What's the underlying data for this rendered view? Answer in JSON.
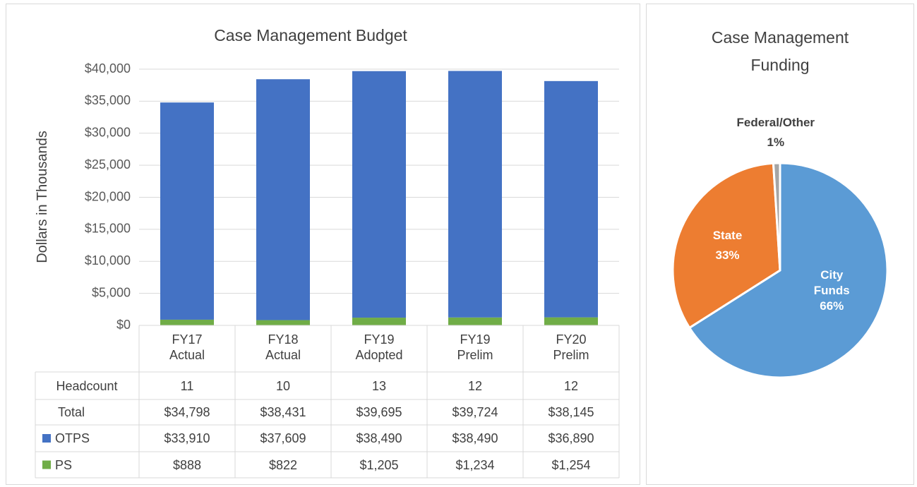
{
  "chart_data": [
    {
      "type": "bar",
      "stacked": true,
      "title": "Case Management Budget",
      "y_label": "Dollars in Thousands",
      "categories": [
        "FY17 Actual",
        "FY18 Actual",
        "FY19 Adopted",
        "FY19 Prelim",
        "FY20 Prelim"
      ],
      "series": [
        {
          "name": "OTPS",
          "color": "#4472c4",
          "values": [
            33910,
            37609,
            38490,
            38490,
            36890
          ],
          "value_labels": [
            "$33,910",
            "$37,609",
            "$38,490",
            "$38,490",
            "$36,890"
          ]
        },
        {
          "name": "PS",
          "color": "#70ad47",
          "values": [
            888,
            822,
            1205,
            1234,
            1254
          ],
          "value_labels": [
            "$888",
            "$822",
            "$1,205",
            "$1,234",
            "$1,254"
          ]
        }
      ],
      "table": {
        "rows": [
          {
            "name": "Headcount",
            "cells": [
              11,
              10,
              13,
              12,
              12
            ]
          },
          {
            "name": "Total",
            "cells": [
              "$34,798",
              "$38,431",
              "$39,695",
              "$39,724",
              "$38,145"
            ]
          }
        ]
      },
      "ylim": [
        0,
        40000
      ],
      "yticks": [
        {
          "value": 0,
          "label": "$0"
        },
        {
          "value": 5000,
          "label": "$5,000"
        },
        {
          "value": 10000,
          "label": "$10,000"
        },
        {
          "value": 15000,
          "label": "$15,000"
        },
        {
          "value": 20000,
          "label": "$20,000"
        },
        {
          "value": 25000,
          "label": "$25,000"
        },
        {
          "value": 30000,
          "label": "$30,000"
        },
        {
          "value": 35000,
          "label": "$35,000"
        },
        {
          "value": 40000,
          "label": "$40,000"
        }
      ],
      "grid": true
    },
    {
      "type": "pie",
      "title": "Case Management Funding",
      "categories": [
        "City Funds",
        "State",
        "Federal/Other"
      ],
      "values": [
        66,
        33,
        1
      ],
      "value_labels": [
        "66%",
        "33%",
        "1%"
      ],
      "colors": [
        "#5b9bd5",
        "#ed7d31",
        "#a5a5a5"
      ]
    }
  ]
}
